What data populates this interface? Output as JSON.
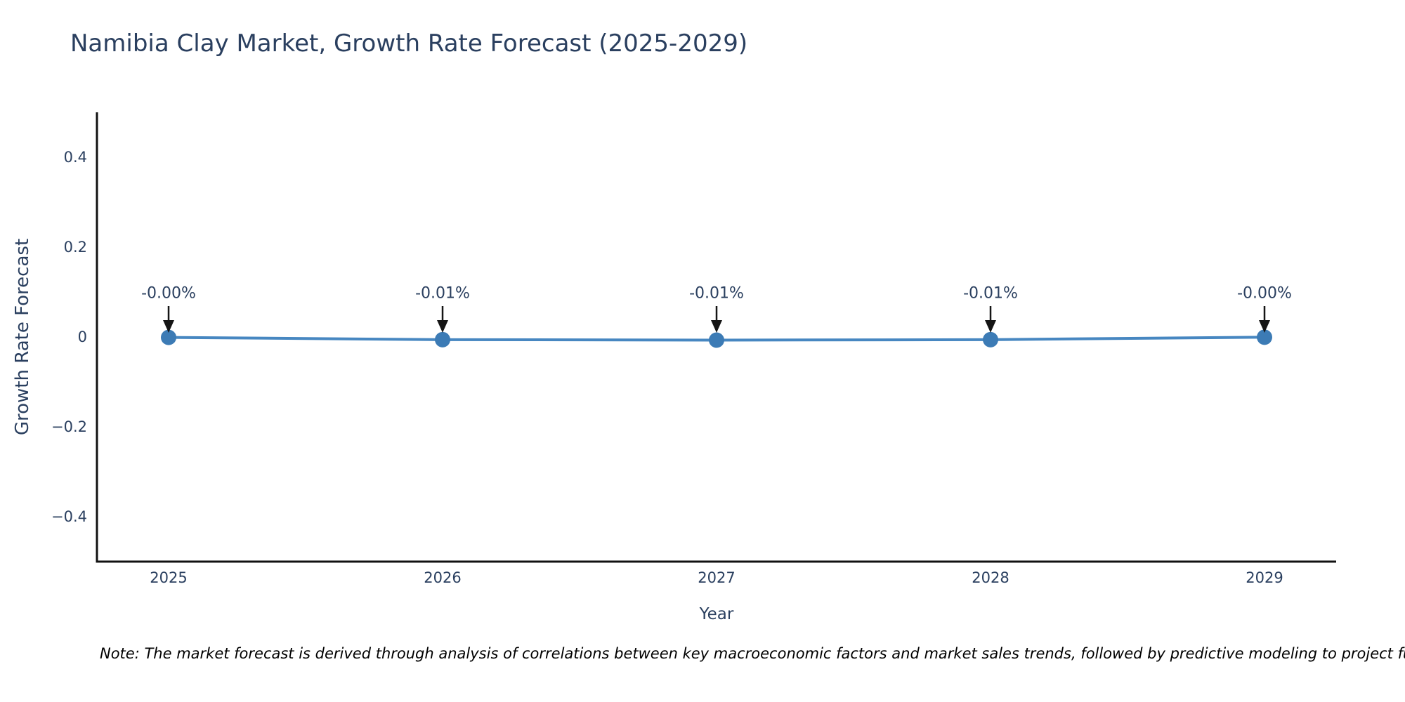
{
  "chart_data": {
    "type": "line",
    "title": "Namibia Clay Market, Growth Rate Forecast (2025-2029)",
    "xlabel": "Year",
    "ylabel": "Growth Rate Forecast",
    "categories": [
      "2025",
      "2026",
      "2027",
      "2028",
      "2029"
    ],
    "values": [
      -0.001,
      -0.006,
      -0.007,
      -0.006,
      -0.0005
    ],
    "point_labels": [
      "-0.00%",
      "-0.01%",
      "-0.01%",
      "-0.01%",
      "-0.00%"
    ],
    "ylim": [
      -0.5,
      0.5
    ],
    "ytick_values": [
      0.4,
      0.2,
      0,
      -0.2,
      -0.4
    ],
    "ytick_labels": [
      "0.4",
      "0.2",
      "0",
      "−0.2",
      "−0.4"
    ],
    "grid": false,
    "legend": false,
    "line_color": "#4787c1",
    "marker_color": "#3c7bb5",
    "arrow_color": "#151515",
    "axis_color": "#111111",
    "text_color": "#2a3f5f"
  },
  "note": {
    "text": "Note: The market forecast is derived through analysis of correlations between key macroeconomic factors and market sales trends, followed by predictive modeling to project future sales"
  }
}
